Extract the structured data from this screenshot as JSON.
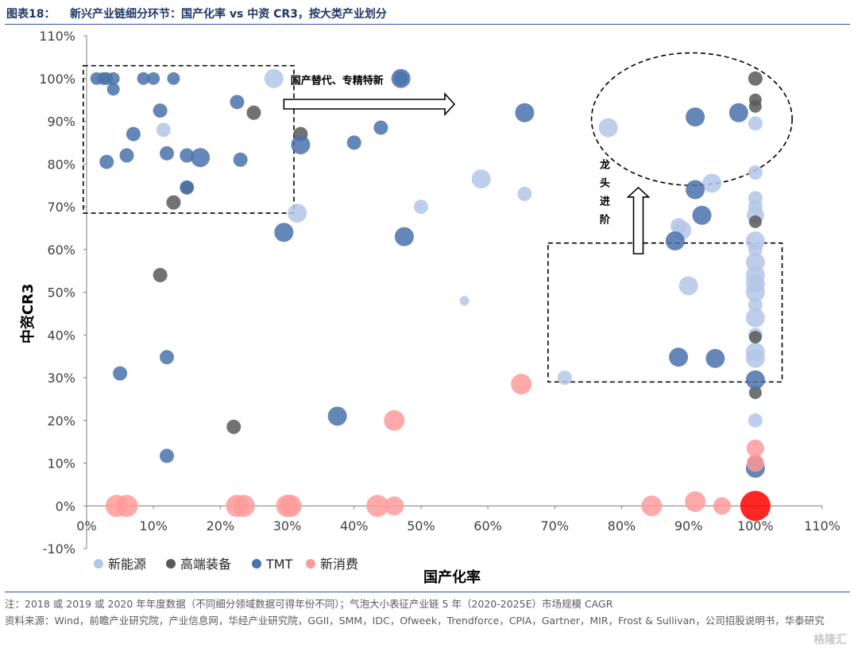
{
  "header": {
    "fig_label": "图表18：",
    "title": "新兴产业链细分环节：国产化率 vs 中资 CR3，按大类产业划分"
  },
  "footer": {
    "note": "注：2018 或 2019 或 2020 年年度数据（不同细分领域数据可得年份不同）；气泡大小表征产业链 5 年（2020-2025E）市场规模 CAGR",
    "source": "资料来源：Wind，前瞻产业研究院，产业信息网，华经产业研究院，GGII，SMM，IDC，Ofweek，Trendforce，CPIA，Gartner，MIR，Frost & Sullivan，公司招股说明书，华泰研究"
  },
  "watermark": "格隆汇",
  "chart_data": {
    "type": "scatter",
    "subtype": "bubble",
    "xlabel": "国产化率",
    "ylabel": "中资CR3",
    "xlim": [
      0,
      110
    ],
    "ylim": [
      -10,
      110
    ],
    "xticks": [
      "0%",
      "10%",
      "20%",
      "30%",
      "40%",
      "50%",
      "60%",
      "70%",
      "80%",
      "90%",
      "100%",
      "110%"
    ],
    "yticks": [
      "-10%",
      "0%",
      "10%",
      "20%",
      "30%",
      "40%",
      "50%",
      "60%",
      "70%",
      "80%",
      "90%",
      "100%",
      "110%"
    ],
    "grid": false,
    "legend_position": "bottom",
    "annotations": {
      "arrow_right": "国产替代、专精特新",
      "arrow_up": "龙头进阶"
    },
    "series": [
      {
        "name": "新能源",
        "color": "#b4c7e7",
        "points": [
          [
            28,
            100,
            12
          ],
          [
            11.5,
            88,
            9
          ],
          [
            31.5,
            68.5,
            12
          ],
          [
            50,
            70,
            9
          ],
          [
            59,
            76.5,
            12
          ],
          [
            65.5,
            73,
            9
          ],
          [
            56.5,
            48,
            6
          ],
          [
            71.5,
            30,
            9
          ],
          [
            78,
            88.5,
            12
          ],
          [
            93.5,
            75.5,
            12
          ],
          [
            89,
            64.5,
            12
          ],
          [
            88.5,
            65.5,
            10
          ],
          [
            90,
            51.5,
            12
          ],
          [
            100,
            89.5,
            9
          ],
          [
            100,
            78,
            9
          ],
          [
            100,
            72,
            9
          ],
          [
            100,
            70,
            9
          ],
          [
            100,
            68,
            11
          ],
          [
            100,
            62,
            12
          ],
          [
            100,
            60,
            9
          ],
          [
            100,
            57,
            12
          ],
          [
            100,
            54,
            12
          ],
          [
            100,
            52,
            12
          ],
          [
            100,
            50,
            12
          ],
          [
            100,
            47,
            9
          ],
          [
            100,
            44,
            12
          ],
          [
            100,
            40,
            9
          ],
          [
            100,
            36,
            12
          ],
          [
            100,
            34.5,
            12
          ],
          [
            100,
            20,
            9
          ]
        ]
      },
      {
        "name": "高端装备",
        "color": "#595959",
        "points": [
          [
            25,
            92,
            9
          ],
          [
            32,
            87,
            9
          ],
          [
            15,
            74.5,
            8
          ],
          [
            13,
            71,
            9
          ],
          [
            11,
            54,
            9
          ],
          [
            22,
            18.5,
            9
          ],
          [
            100,
            100,
            9
          ],
          [
            100,
            95,
            8
          ],
          [
            100,
            93.5,
            8
          ],
          [
            100,
            66.5,
            8
          ],
          [
            100,
            39.5,
            8
          ],
          [
            100,
            26.5,
            8
          ],
          [
            100,
            10,
            10
          ]
        ]
      },
      {
        "name": "TMT",
        "color": "#4a72ac",
        "points": [
          [
            1.5,
            100,
            8
          ],
          [
            2.5,
            100,
            8
          ],
          [
            3,
            100,
            8
          ],
          [
            4,
            100,
            8
          ],
          [
            8.5,
            100,
            8
          ],
          [
            10,
            100,
            8
          ],
          [
            13,
            100,
            8
          ],
          [
            4,
            97.5,
            8
          ],
          [
            11,
            92.5,
            9
          ],
          [
            22.5,
            94.5,
            9
          ],
          [
            47,
            100,
            12
          ],
          [
            47,
            100,
            9
          ],
          [
            65.5,
            92,
            12
          ],
          [
            44,
            88.5,
            9
          ],
          [
            7,
            87,
            9
          ],
          [
            32,
            84.5,
            12
          ],
          [
            40,
            85,
            9
          ],
          [
            3,
            80.5,
            9
          ],
          [
            6,
            82,
            9
          ],
          [
            12,
            82.5,
            9
          ],
          [
            15,
            82,
            9
          ],
          [
            17,
            81.5,
            12
          ],
          [
            23,
            81,
            9
          ],
          [
            15,
            74.5,
            9
          ],
          [
            29.5,
            64,
            12
          ],
          [
            47.5,
            63,
            12
          ],
          [
            5,
            31,
            9
          ],
          [
            12,
            34.8,
            9
          ],
          [
            12,
            11.7,
            9
          ],
          [
            37.5,
            21,
            12
          ],
          [
            91,
            91,
            12
          ],
          [
            97.5,
            92,
            12
          ],
          [
            91,
            74,
            12
          ],
          [
            92,
            68,
            12
          ],
          [
            88,
            62,
            12
          ],
          [
            88.5,
            34.8,
            12
          ],
          [
            94,
            34.5,
            12
          ],
          [
            100,
            29.5,
            12
          ],
          [
            100,
            8.8,
            12
          ]
        ]
      },
      {
        "name": "新消费",
        "color": "#ff9b9b",
        "points": [
          [
            46,
            20,
            13
          ],
          [
            65,
            28.5,
            13
          ],
          [
            4.5,
            0,
            14
          ],
          [
            6,
            0,
            14
          ],
          [
            22.5,
            0,
            14
          ],
          [
            23.5,
            0,
            14
          ],
          [
            30,
            0,
            14
          ],
          [
            30.5,
            0,
            14
          ],
          [
            43.5,
            0,
            14
          ],
          [
            46,
            0,
            12
          ],
          [
            84.5,
            0,
            13
          ],
          [
            91,
            1,
            13
          ],
          [
            95,
            0,
            11
          ],
          [
            100,
            13.5,
            11
          ],
          [
            100,
            10,
            11
          ],
          [
            100,
            0,
            19
          ]
        ],
        "highlight": [
          100,
          0
        ]
      }
    ]
  }
}
